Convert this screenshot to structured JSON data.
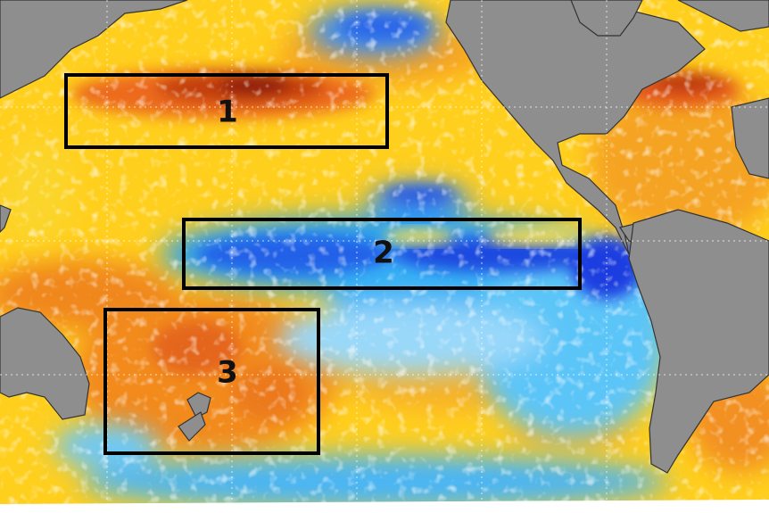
{
  "map": {
    "type": "sea-surface-temperature-anomaly",
    "colors": {
      "land": "#8e8e8e",
      "warm_strong": "#a01e0a",
      "warm": "#e8541c",
      "warm_mid": "#f49a1f",
      "mild_warm": "#ffd21e",
      "neutral": "#f2f2ee",
      "mild_cool": "#80d8ff",
      "cool": "#1fa0f0",
      "cool_strong": "#1a3ce0",
      "box_outline": "#000000"
    },
    "regions": [
      {
        "label": "1"
      },
      {
        "label": "2"
      },
      {
        "label": "3"
      }
    ]
  }
}
